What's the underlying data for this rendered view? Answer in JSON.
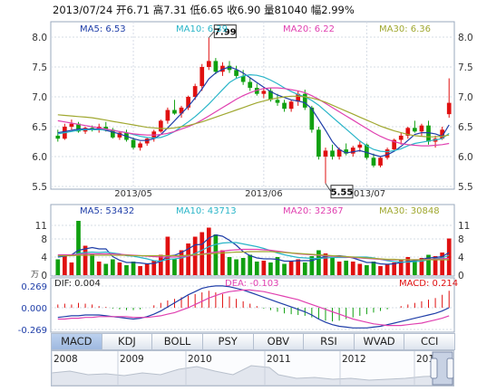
{
  "header": {
    "date": "2013/07/24",
    "open_label": "开",
    "open": "6.71",
    "high_label": "高",
    "high": "7.31",
    "low_label": "低",
    "low": "6.65",
    "close_label": "收",
    "close": "6.90",
    "vol_label": "量",
    "vol": "81040",
    "chg_label": "幅",
    "chg": "2.99%"
  },
  "price_legend": {
    "ma5": "MA5: 6.53",
    "ma10": "MA10: 6.39",
    "ma20": "MA20: 6.22",
    "ma30": "MA30: 6.36"
  },
  "volume_legend": {
    "ma5": "MA5: 53432",
    "ma10": "MA10: 43713",
    "ma20": "MA20: 32367",
    "ma30": "MA30: 30848",
    "unit": "万"
  },
  "macd_legend": {
    "dif": "DIF: 0.004",
    "dea": "DEA: -0.103",
    "macd": "MACD: 0.214"
  },
  "tabs": [
    "MACD",
    "KDJ",
    "BOLL",
    "PSY",
    "OBV",
    "RSI",
    "WVAD",
    "CCI"
  ],
  "active_tab": "MACD",
  "navigator_years": [
    "2008",
    "2009",
    "2010",
    "2011",
    "2012",
    "201"
  ],
  "colors": {
    "up": "#e01010",
    "down": "#10a010",
    "ma5": "#1f3ea8",
    "ma10": "#29b5c8",
    "ma20": "#e040b0",
    "ma30": "#a0a830"
  },
  "chart_data": [
    {
      "type": "candlestick",
      "title": "",
      "ylim": [
        5.5,
        8.0
      ],
      "y_ticks": [
        "8.0",
        "7.5",
        "7.0",
        "6.5",
        "6.0",
        "5.5"
      ],
      "x_ticks": [
        "2013/05",
        "2013/06",
        "2013/07"
      ],
      "annotations": [
        {
          "label": "7.99"
        },
        {
          "label": "5.55"
        }
      ],
      "candles": [
        [
          6.35,
          6.45,
          6.25,
          6.3
        ],
        [
          6.3,
          6.55,
          6.28,
          6.5
        ],
        [
          6.5,
          6.62,
          6.45,
          6.55
        ],
        [
          6.55,
          6.58,
          6.4,
          6.42
        ],
        [
          6.42,
          6.5,
          6.38,
          6.48
        ],
        [
          6.48,
          6.52,
          6.42,
          6.45
        ],
        [
          6.45,
          6.55,
          6.4,
          6.5
        ],
        [
          6.5,
          6.58,
          6.42,
          6.45
        ],
        [
          6.45,
          6.48,
          6.3,
          6.32
        ],
        [
          6.32,
          6.42,
          6.28,
          6.4
        ],
        [
          6.4,
          6.45,
          6.25,
          6.28
        ],
        [
          6.28,
          6.32,
          6.12,
          6.15
        ],
        [
          6.15,
          6.25,
          6.1,
          6.22
        ],
        [
          6.22,
          6.32,
          6.18,
          6.3
        ],
        [
          6.3,
          6.45,
          6.25,
          6.42
        ],
        [
          6.42,
          6.62,
          6.4,
          6.6
        ],
        [
          6.6,
          6.82,
          6.55,
          6.78
        ],
        [
          6.78,
          6.95,
          6.7,
          6.72
        ],
        [
          6.72,
          6.85,
          6.65,
          6.82
        ],
        [
          6.82,
          7.02,
          6.78,
          7.0
        ],
        [
          7.0,
          7.22,
          6.95,
          7.18
        ],
        [
          7.18,
          7.55,
          7.1,
          7.5
        ],
        [
          7.5,
          7.99,
          7.45,
          7.6
        ],
        [
          7.6,
          7.65,
          7.38,
          7.42
        ],
        [
          7.42,
          7.58,
          7.35,
          7.52
        ],
        [
          7.52,
          7.6,
          7.4,
          7.45
        ],
        [
          7.45,
          7.52,
          7.3,
          7.35
        ],
        [
          7.35,
          7.45,
          7.2,
          7.25
        ],
        [
          7.25,
          7.32,
          7.1,
          7.15
        ],
        [
          7.15,
          7.22,
          7.02,
          7.05
        ],
        [
          7.05,
          7.15,
          6.98,
          7.1
        ],
        [
          7.1,
          7.15,
          6.92,
          6.95
        ],
        [
          6.95,
          7.05,
          6.85,
          6.9
        ],
        [
          6.9,
          6.95,
          6.75,
          6.8
        ],
        [
          6.8,
          6.95,
          6.75,
          6.92
        ],
        [
          6.92,
          7.1,
          6.85,
          7.05
        ],
        [
          7.05,
          7.12,
          6.78,
          6.82
        ],
        [
          6.82,
          6.85,
          6.4,
          6.45
        ],
        [
          6.45,
          6.5,
          5.95,
          6.0
        ],
        [
          6.0,
          6.15,
          5.55,
          6.1
        ],
        [
          6.1,
          6.2,
          5.95,
          6.0
        ],
        [
          6.0,
          6.15,
          5.95,
          6.12
        ],
        [
          6.12,
          6.22,
          6.02,
          6.05
        ],
        [
          6.05,
          6.18,
          6.0,
          6.15
        ],
        [
          6.15,
          6.25,
          6.08,
          6.2
        ],
        [
          6.2,
          6.22,
          5.95,
          5.98
        ],
        [
          5.98,
          6.05,
          5.82,
          5.85
        ],
        [
          5.85,
          6.0,
          5.82,
          5.98
        ],
        [
          5.98,
          6.15,
          5.95,
          6.12
        ],
        [
          6.12,
          6.3,
          6.1,
          6.28
        ],
        [
          6.28,
          6.4,
          6.2,
          6.35
        ],
        [
          6.35,
          6.5,
          6.3,
          6.48
        ],
        [
          6.48,
          6.6,
          6.4,
          6.42
        ],
        [
          6.42,
          6.55,
          6.35,
          6.52
        ],
        [
          6.52,
          6.6,
          6.2,
          6.25
        ],
        [
          6.25,
          6.35,
          6.15,
          6.3
        ],
        [
          6.3,
          6.5,
          6.28,
          6.45
        ],
        [
          6.71,
          7.31,
          6.65,
          6.9
        ]
      ],
      "series": [
        {
          "name": "MA5",
          "values": [
            6.4,
            6.42,
            6.44,
            6.46,
            6.46,
            6.46,
            6.46,
            6.44,
            6.41,
            6.38,
            6.34,
            6.3,
            6.27,
            6.27,
            6.3,
            6.37,
            6.48,
            6.6,
            6.72,
            6.84,
            6.98,
            7.13,
            7.3,
            7.4,
            7.46,
            7.5,
            7.46,
            7.4,
            7.32,
            7.24,
            7.16,
            7.09,
            7.03,
            6.99,
            6.95,
            6.93,
            6.9,
            6.8,
            6.62,
            6.44,
            6.25,
            6.12,
            6.06,
            6.08,
            6.1,
            6.07,
            6.03,
            6.0,
            6.03,
            6.09,
            6.17,
            6.27,
            6.37,
            6.4,
            6.4,
            6.38,
            6.34,
            6.53
          ]
        },
        {
          "name": "MA10",
          "values": [
            6.38,
            6.4,
            6.42,
            6.44,
            6.45,
            6.45,
            6.45,
            6.45,
            6.44,
            6.42,
            6.4,
            6.37,
            6.34,
            6.32,
            6.31,
            6.32,
            6.36,
            6.42,
            6.5,
            6.58,
            6.67,
            6.77,
            6.88,
            7.0,
            7.12,
            7.24,
            7.31,
            7.35,
            7.37,
            7.36,
            7.33,
            7.28,
            7.22,
            7.15,
            7.09,
            7.04,
            7.0,
            6.94,
            6.86,
            6.76,
            6.66,
            6.56,
            6.46,
            6.36,
            6.26,
            6.18,
            6.12,
            6.09,
            6.08,
            6.1,
            6.13,
            6.18,
            6.22,
            6.24,
            6.26,
            6.28,
            6.3,
            6.39
          ]
        },
        {
          "name": "MA20",
          "values": [
            6.6,
            6.58,
            6.56,
            6.54,
            6.52,
            6.5,
            6.48,
            6.46,
            6.44,
            6.42,
            6.4,
            6.38,
            6.37,
            6.36,
            6.36,
            6.37,
            6.39,
            6.42,
            6.46,
            6.5,
            6.55,
            6.61,
            6.68,
            6.75,
            6.82,
            6.89,
            6.96,
            7.02,
            7.07,
            7.11,
            7.14,
            7.15,
            7.15,
            7.14,
            7.12,
            7.1,
            7.07,
            7.02,
            6.96,
            6.89,
            6.82,
            6.75,
            6.68,
            6.61,
            6.54,
            6.47,
            6.4,
            6.34,
            6.29,
            6.25,
            6.22,
            6.2,
            6.19,
            6.18,
            6.18,
            6.19,
            6.2,
            6.22
          ]
        },
        {
          "name": "MA30",
          "values": [
            6.7,
            6.69,
            6.68,
            6.67,
            6.66,
            6.65,
            6.63,
            6.61,
            6.59,
            6.57,
            6.55,
            6.53,
            6.51,
            6.49,
            6.48,
            6.47,
            6.47,
            6.48,
            6.5,
            6.52,
            6.55,
            6.58,
            6.62,
            6.66,
            6.7,
            6.74,
            6.78,
            6.82,
            6.86,
            6.9,
            6.93,
            6.96,
            6.98,
            7.0,
            7.01,
            7.01,
            7.0,
            6.98,
            6.95,
            6.91,
            6.86,
            6.81,
            6.76,
            6.71,
            6.66,
            6.61,
            6.56,
            6.51,
            6.47,
            6.43,
            6.4,
            6.37,
            6.35,
            6.34,
            6.33,
            6.33,
            6.34,
            6.36
          ]
        }
      ]
    },
    {
      "type": "bar",
      "title": "",
      "ylim": [
        0,
        12
      ],
      "y_ticks": [
        "11",
        "8",
        "4",
        "0"
      ],
      "values": [
        3.5,
        4.2,
        2.8,
        12,
        6.5,
        4.8,
        3.0,
        2.5,
        3.5,
        2.8,
        2.2,
        3.0,
        2.0,
        2.5,
        3.2,
        4.5,
        8.5,
        3.5,
        5.5,
        7.0,
        8.5,
        9.5,
        10.5,
        9.0,
        5.5,
        4.0,
        3.5,
        3.8,
        4.5,
        3.0,
        3.2,
        2.8,
        4.0,
        2.5,
        3.0,
        3.5,
        2.8,
        4.2,
        5.5,
        4.8,
        3.8,
        3.0,
        3.2,
        3.0,
        2.5,
        2.2,
        3.0,
        2.0,
        2.5,
        2.8,
        3.5,
        4.0,
        3.2,
        3.8,
        4.5,
        4.2,
        5.0,
        8.1
      ],
      "series": [
        {
          "name": "MA5",
          "values": [
            4.0,
            4.2,
            4.5,
            5.5,
            5.8,
            6.1,
            5.8,
            5.8,
            4.1,
            3.3,
            2.8,
            2.8,
            2.7,
            2.5,
            2.6,
            3.0,
            4.2,
            4.4,
            5.0,
            5.8,
            6.7,
            6.8,
            8.2,
            8.9,
            8.6,
            7.7,
            6.6,
            5.2,
            4.3,
            3.8,
            3.6,
            3.6,
            3.5,
            3.1,
            3.1,
            3.2,
            3.2,
            3.2,
            3.7,
            4.2,
            4.2,
            4.3,
            4.1,
            3.8,
            3.3,
            2.8,
            2.8,
            2.5,
            2.4,
            2.5,
            2.8,
            3.0,
            3.2,
            3.5,
            3.8,
            3.9,
            4.1,
            5.0
          ]
        },
        {
          "name": "MA10",
          "values": [
            4.2,
            4.3,
            4.4,
            4.8,
            5.0,
            5.1,
            5.0,
            5.1,
            4.9,
            4.7,
            4.3,
            4.2,
            3.9,
            3.6,
            3.2,
            3.1,
            3.5,
            3.6,
            3.8,
            4.2,
            4.8,
            5.5,
            6.3,
            6.8,
            7.1,
            7.2,
            7.2,
            6.9,
            6.6,
            6.3,
            5.9,
            5.4,
            4.9,
            4.5,
            4.2,
            3.9,
            3.8,
            3.7,
            3.7,
            3.8,
            3.9,
            3.9,
            3.9,
            4.0,
            4.0,
            4.0,
            3.8,
            3.5,
            3.2,
            3.0,
            2.9,
            2.9,
            3.0,
            3.1,
            3.4,
            3.6,
            3.8,
            4.4
          ]
        },
        {
          "name": "MA20",
          "values": [
            4.5,
            4.5,
            4.5,
            4.6,
            4.7,
            4.7,
            4.7,
            4.7,
            4.7,
            4.6,
            4.5,
            4.4,
            4.3,
            4.2,
            4.1,
            4.0,
            4.0,
            4.0,
            4.1,
            4.2,
            4.4,
            4.6,
            4.9,
            5.1,
            5.3,
            5.5,
            5.6,
            5.7,
            5.7,
            5.7,
            5.6,
            5.5,
            5.3,
            5.1,
            4.9,
            4.7,
            4.6,
            4.5,
            4.4,
            4.3,
            4.2,
            4.1,
            4.0,
            3.9,
            3.8,
            3.7,
            3.6,
            3.5,
            3.4,
            3.4,
            3.4,
            3.4,
            3.4,
            3.4,
            3.5,
            3.5,
            3.6,
            3.7
          ]
        },
        {
          "name": "MA30",
          "values": [
            4.3,
            4.3,
            4.3,
            4.4,
            4.4,
            4.4,
            4.4,
            4.4,
            4.4,
            4.4,
            4.4,
            4.3,
            4.3,
            4.3,
            4.3,
            4.3,
            4.3,
            4.3,
            4.3,
            4.4,
            4.5,
            4.6,
            4.7,
            4.8,
            4.9,
            5.0,
            5.1,
            5.1,
            5.2,
            5.2,
            5.2,
            5.2,
            5.1,
            5.0,
            4.9,
            4.8,
            4.7,
            4.6,
            4.5,
            4.4,
            4.3,
            4.2,
            4.1,
            4.0,
            3.9,
            3.8,
            3.7,
            3.6,
            3.5,
            3.5,
            3.4,
            3.4,
            3.4,
            3.4,
            3.4,
            3.4,
            3.4,
            3.4
          ]
        }
      ]
    },
    {
      "type": "bar",
      "title": "",
      "ylim": [
        -0.3,
        0.3
      ],
      "y_ticks": [
        "0.269",
        "0.000",
        "-0.269"
      ],
      "values": [
        0.04,
        0.05,
        0.04,
        0.06,
        0.05,
        0.04,
        0.02,
        0.01,
        -0.01,
        -0.02,
        -0.03,
        -0.03,
        -0.02,
        0.0,
        0.03,
        0.06,
        0.09,
        0.11,
        0.13,
        0.15,
        0.17,
        0.19,
        0.21,
        0.19,
        0.17,
        0.14,
        0.11,
        0.08,
        0.05,
        0.02,
        -0.01,
        -0.03,
        -0.05,
        -0.07,
        -0.08,
        -0.09,
        -0.1,
        -0.12,
        -0.14,
        -0.16,
        -0.17,
        -0.16,
        -0.14,
        -0.12,
        -0.1,
        -0.08,
        -0.06,
        -0.04,
        -0.02,
        0.0,
        0.02,
        0.04,
        0.06,
        0.08,
        0.1,
        0.12,
        0.16,
        0.21
      ],
      "series": [
        {
          "name": "DIF",
          "values": [
            -0.12,
            -0.11,
            -0.1,
            -0.1,
            -0.09,
            -0.09,
            -0.09,
            -0.1,
            -0.11,
            -0.12,
            -0.13,
            -0.14,
            -0.13,
            -0.11,
            -0.08,
            -0.04,
            0.01,
            0.06,
            0.11,
            0.16,
            0.2,
            0.24,
            0.26,
            0.27,
            0.27,
            0.26,
            0.24,
            0.22,
            0.19,
            0.16,
            0.13,
            0.1,
            0.07,
            0.04,
            0.01,
            -0.02,
            -0.05,
            -0.09,
            -0.14,
            -0.18,
            -0.21,
            -0.23,
            -0.24,
            -0.25,
            -0.25,
            -0.25,
            -0.24,
            -0.23,
            -0.21,
            -0.19,
            -0.17,
            -0.15,
            -0.13,
            -0.11,
            -0.09,
            -0.07,
            -0.04,
            0.0
          ]
        },
        {
          "name": "DEA",
          "values": [
            -0.14,
            -0.14,
            -0.13,
            -0.13,
            -0.12,
            -0.12,
            -0.11,
            -0.11,
            -0.11,
            -0.11,
            -0.11,
            -0.12,
            -0.12,
            -0.12,
            -0.11,
            -0.1,
            -0.08,
            -0.06,
            -0.03,
            0.0,
            0.04,
            0.08,
            0.12,
            0.15,
            0.18,
            0.2,
            0.21,
            0.22,
            0.22,
            0.21,
            0.2,
            0.18,
            0.16,
            0.14,
            0.12,
            0.1,
            0.07,
            0.04,
            0.01,
            -0.02,
            -0.05,
            -0.08,
            -0.11,
            -0.14,
            -0.16,
            -0.18,
            -0.2,
            -0.21,
            -0.22,
            -0.22,
            -0.22,
            -0.21,
            -0.2,
            -0.19,
            -0.17,
            -0.15,
            -0.13,
            -0.1
          ]
        }
      ]
    }
  ]
}
